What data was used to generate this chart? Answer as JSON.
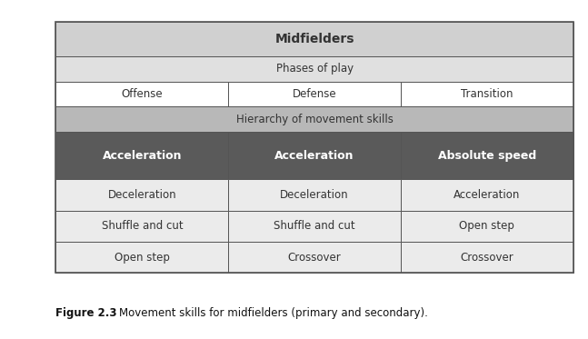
{
  "title": "Midfielders",
  "row1_label": "Phases of play",
  "row2_labels": [
    "Offense",
    "Defense",
    "Transition"
  ],
  "row3_label": "Hierarchy of movement skills",
  "primary_row": [
    "Acceleration",
    "Acceleration",
    "Absolute speed"
  ],
  "data_rows": [
    [
      "Deceleration",
      "Deceleration",
      "Acceleration"
    ],
    [
      "Shuffle and cut",
      "Shuffle and cut",
      "Open step"
    ],
    [
      "Open step",
      "Crossover",
      "Crossover"
    ]
  ],
  "caption_bold": "Figure 2.3",
  "caption_normal": "    Movement skills for midfielders (primary and secondary).",
  "color_header_top": "#d0d0d0",
  "color_header_phases": "#e0e0e0",
  "color_header_cols": "#ffffff",
  "color_hierarchy": "#b8b8b8",
  "color_primary": "#5a5a5a",
  "color_data_bg": "#ebebeb",
  "color_border": "#555555",
  "color_text_primary": "#ffffff",
  "color_text_normal": "#333333",
  "color_caption": "#111111"
}
